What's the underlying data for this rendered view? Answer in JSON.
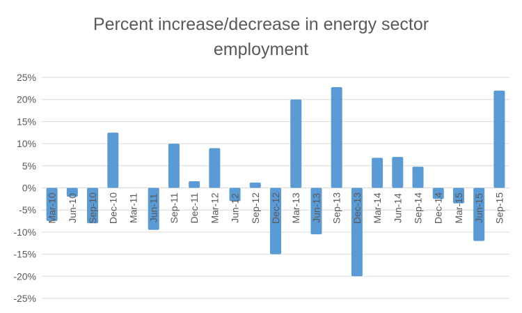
{
  "chart_data": {
    "type": "bar",
    "title": "Percent increase/decrease in energy sector employment",
    "title_lines": [
      "Percent increase/decrease in energy sector",
      "employment"
    ],
    "xlabel": "",
    "ylabel": "",
    "ylim": [
      -0.25,
      0.25
    ],
    "y_ticks": [
      0.25,
      0.2,
      0.15,
      0.1,
      0.05,
      0,
      -0.05,
      -0.1,
      -0.15,
      -0.2,
      -0.25
    ],
    "y_tick_labels": [
      "25%",
      "20%",
      "15%",
      "10%",
      "5%",
      "0%",
      "-5%",
      "-10%",
      "-15%",
      "-20%",
      "-25%"
    ],
    "grid": true,
    "categories": [
      "Mar-10",
      "Jun-10",
      "Sep-10",
      "Dec-10",
      "Mar-11",
      "Jun-11",
      "Sep-11",
      "Dec-11",
      "Mar-12",
      "Jun-12",
      "Sep-12",
      "Dec-12",
      "Mar-13",
      "Jun-13",
      "Sep-13",
      "Dec-13",
      "Mar-14",
      "Jun-14",
      "Sep-14",
      "Dec-14",
      "Mar-15",
      "Jun-15",
      "Sep-15"
    ],
    "values": [
      -0.075,
      -0.02,
      -0.08,
      0.125,
      0.0,
      -0.095,
      0.1,
      0.015,
      0.09,
      -0.03,
      0.012,
      -0.15,
      0.2,
      -0.105,
      0.228,
      -0.2,
      0.068,
      0.07,
      0.048,
      -0.025,
      -0.035,
      -0.12,
      0.22
    ],
    "bar_color": "#5b9bd5"
  }
}
